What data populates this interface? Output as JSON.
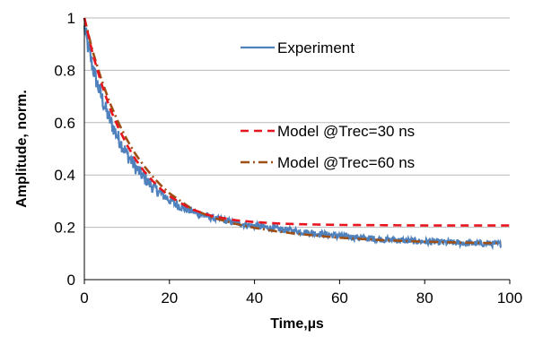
{
  "chart_data": {
    "type": "line",
    "title": "",
    "xlabel": "Time,µs",
    "ylabel": "Amplitude, norm.",
    "xlim": [
      0,
      100
    ],
    "ylim": [
      0,
      1
    ],
    "xticks": [
      0,
      20,
      40,
      60,
      80,
      100
    ],
    "yticks": [
      0,
      0.2,
      0.4,
      0.6,
      0.8,
      1
    ],
    "ytick_labels": [
      "0",
      "0.2",
      "0.4",
      "0.6",
      "0.8",
      "1"
    ],
    "grid": "horizontal",
    "legend_position": "right",
    "series": [
      {
        "name": "Experiment",
        "color": "#4f81bd",
        "style": "solid-noisy",
        "x": [
          0,
          1,
          2,
          3,
          4,
          5,
          6,
          8,
          10,
          12,
          14,
          16,
          18,
          20,
          22,
          24,
          26,
          28,
          30,
          32,
          35,
          38,
          40,
          45,
          50,
          55,
          60,
          65,
          70,
          75,
          80,
          85,
          90,
          95,
          98
        ],
        "y": [
          0.96,
          0.88,
          0.81,
          0.75,
          0.7,
          0.65,
          0.61,
          0.54,
          0.48,
          0.43,
          0.39,
          0.355,
          0.33,
          0.305,
          0.285,
          0.27,
          0.257,
          0.246,
          0.237,
          0.229,
          0.219,
          0.21,
          0.205,
          0.195,
          0.185,
          0.176,
          0.167,
          0.16,
          0.154,
          0.149,
          0.145,
          0.142,
          0.139,
          0.137,
          0.136
        ]
      },
      {
        "name": "Model @Trec=30 ns",
        "color": "#e8141e",
        "style": "dashed",
        "x": [
          0,
          2,
          4,
          6,
          8,
          10,
          12,
          14,
          16,
          18,
          20,
          25,
          30,
          35,
          40,
          45,
          50,
          60,
          70,
          80,
          90,
          100
        ],
        "y": [
          1.0,
          0.86,
          0.75,
          0.655,
          0.58,
          0.515,
          0.46,
          0.415,
          0.378,
          0.346,
          0.319,
          0.27,
          0.243,
          0.228,
          0.22,
          0.215,
          0.212,
          0.209,
          0.208,
          0.207,
          0.207,
          0.207
        ]
      },
      {
        "name": "Model @Trec=60 ns",
        "color": "#9e4f14",
        "style": "dash-dot",
        "x": [
          0,
          2,
          4,
          6,
          8,
          10,
          12,
          14,
          16,
          18,
          20,
          25,
          30,
          35,
          40,
          45,
          50,
          60,
          70,
          80,
          90,
          98
        ],
        "y": [
          1.0,
          0.87,
          0.765,
          0.675,
          0.6,
          0.535,
          0.48,
          0.435,
          0.395,
          0.36,
          0.33,
          0.273,
          0.238,
          0.215,
          0.198,
          0.185,
          0.175,
          0.16,
          0.151,
          0.145,
          0.141,
          0.139
        ]
      }
    ]
  }
}
